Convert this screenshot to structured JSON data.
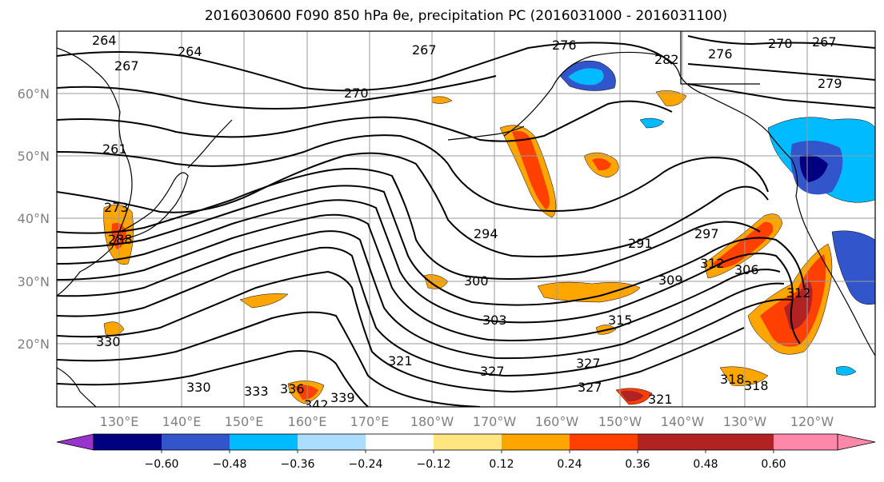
{
  "title": "2016030600 F090 850 hPa θe, precipitation PC (2016031000 - 2016031100)",
  "map": {
    "lat_ticks": [
      "60°N",
      "50°N",
      "40°N",
      "30°N",
      "20°N"
    ],
    "lon_ticks": [
      "130°E",
      "140°E",
      "150°E",
      "160°E",
      "170°E",
      "180°W",
      "170°W",
      "160°W",
      "150°W",
      "140°W",
      "130°W",
      "120°W"
    ],
    "contour_labels": [
      "264",
      "264",
      "267",
      "267",
      "270",
      "270",
      "267",
      "276",
      "282",
      "276",
      "279",
      "273",
      "261",
      "288",
      "294",
      "291",
      "297",
      "300",
      "303",
      "306",
      "309",
      "312",
      "312",
      "315",
      "318",
      "321",
      "321",
      "327",
      "327",
      "330",
      "330",
      "333",
      "336",
      "339",
      "342",
      "327",
      "318"
    ]
  },
  "colorbar": {
    "colors": [
      "#9933cc",
      "#000080",
      "#3355cc",
      "#00bbff",
      "#aaddff",
      "#ffffff",
      "#ffe680",
      "#ffa500",
      "#ff4000",
      "#b22222",
      "#ff88aa"
    ],
    "tick_labels": [
      "−0.60",
      "−0.48",
      "−0.36",
      "−0.24",
      "−0.12",
      "0.12",
      "0.24",
      "0.36",
      "0.48",
      "0.60"
    ]
  }
}
